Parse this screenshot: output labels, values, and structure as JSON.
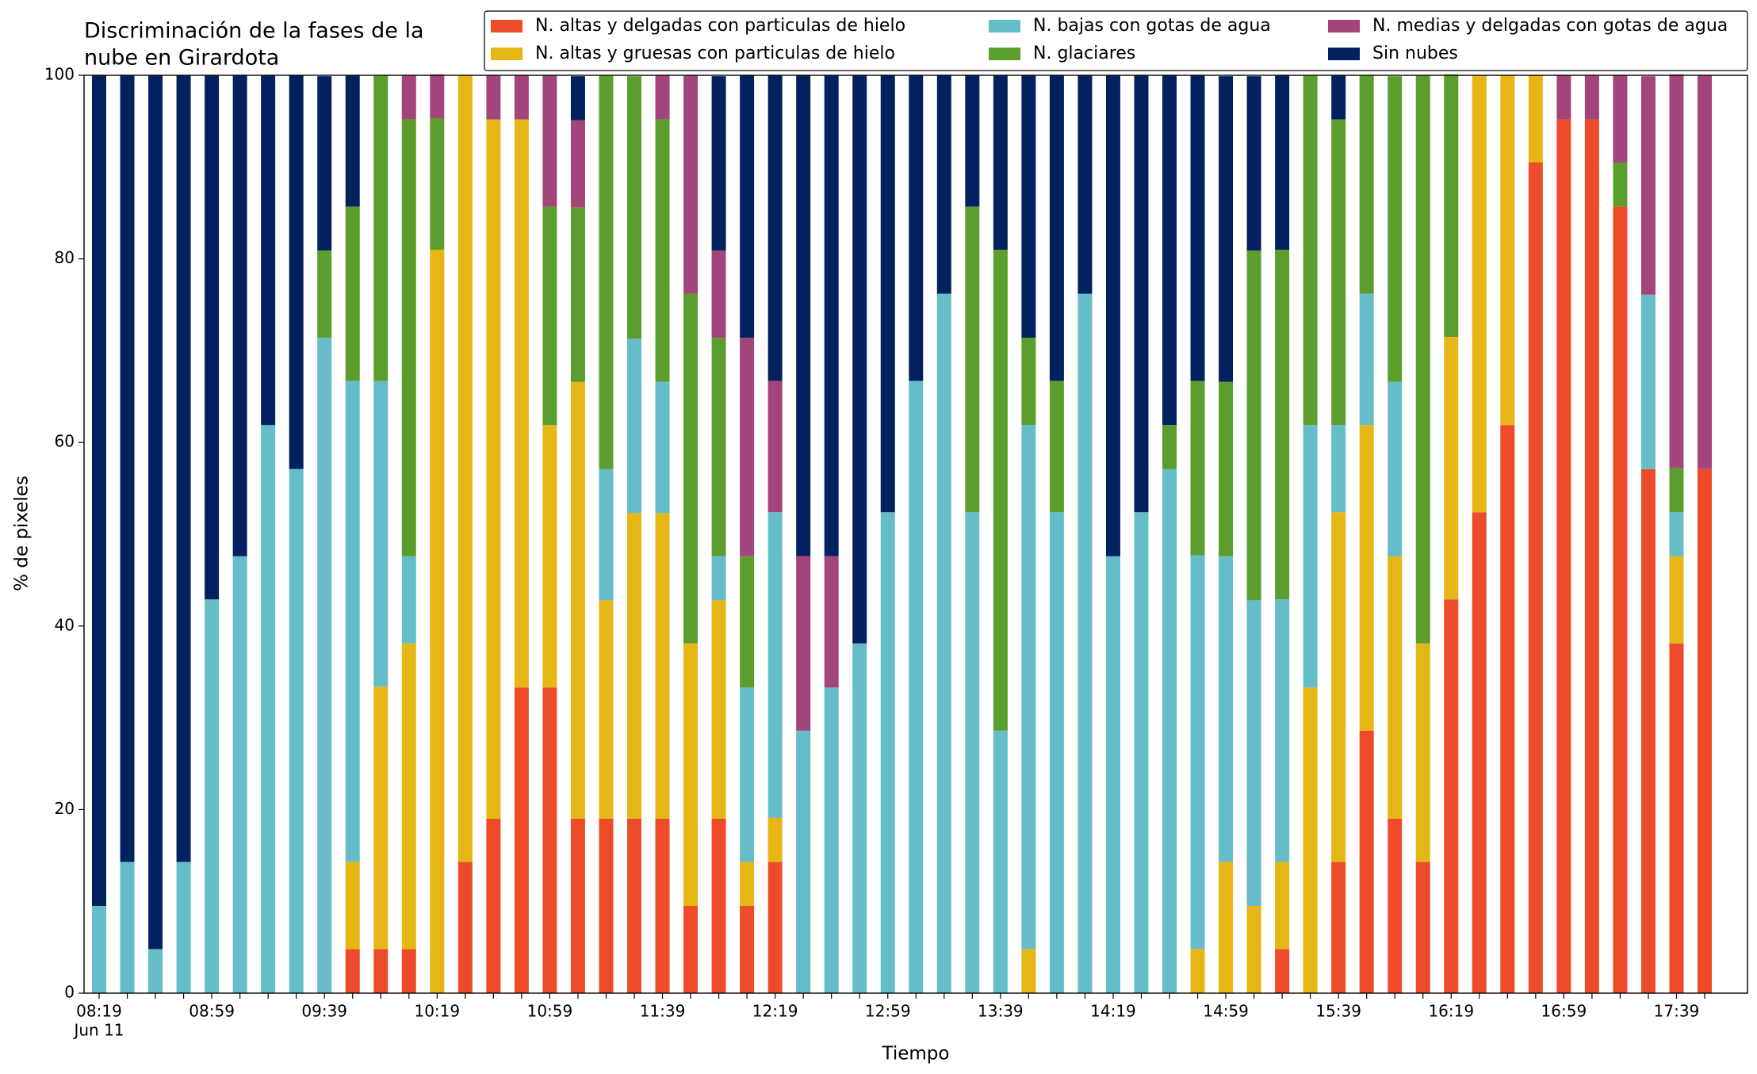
{
  "chart_data": {
    "type": "stacked_bar",
    "title": [
      "Discriminación de la fases de la",
      "nube en Girardota"
    ],
    "xlabel": "Tiempo",
    "ylabel": "% de pixeles",
    "date_label": "Jun 11",
    "categories": [
      "08:19",
      null,
      null,
      null,
      "08:59",
      null,
      null,
      null,
      "09:39",
      null,
      null,
      null,
      "10:19",
      null,
      null,
      null,
      "10:59",
      null,
      null,
      null,
      "11:39",
      null,
      null,
      null,
      "12:19",
      null,
      null,
      null,
      "12:59",
      null,
      null,
      null,
      "13:39",
      null,
      null,
      null,
      "14:19",
      null,
      null,
      null,
      "14:59",
      null,
      null,
      null,
      "15:39",
      null,
      null,
      null,
      "16:19",
      null,
      null,
      null,
      "16:59",
      null,
      null,
      null,
      "17:39",
      null
    ],
    "ylim": [
      0,
      100
    ],
    "yticks": [
      0,
      20,
      40,
      60,
      80,
      100
    ],
    "grid": false,
    "series": [
      {
        "name": "N. altas y delgadas con particulas de hielo",
        "color": "#ee4b2b",
        "values": [
          0,
          0,
          0,
          0,
          0,
          0,
          0,
          0,
          0,
          4.8,
          4.8,
          4.8,
          0,
          14.3,
          19.0,
          33.3,
          33.3,
          19.0,
          19.0,
          19.0,
          19.0,
          9.5,
          19.0,
          9.5,
          14.3,
          0,
          0,
          0,
          0,
          0,
          0,
          0,
          0,
          0,
          0,
          0,
          0,
          0,
          0,
          0,
          0,
          0,
          4.8,
          0,
          14.3,
          28.6,
          19.0,
          14.3,
          42.9,
          52.4,
          61.9,
          90.5,
          95.2,
          95.2,
          85.7,
          57.1,
          38.1,
          57.1
        ]
      },
      {
        "name": "N. altas y gruesas con particulas de hielo",
        "color": "#e5b616",
        "values": [
          0,
          0,
          0,
          0,
          0,
          0,
          0,
          0,
          0,
          9.5,
          28.6,
          33.3,
          81.0,
          85.7,
          76.2,
          61.9,
          28.6,
          47.6,
          23.8,
          33.3,
          33.3,
          28.6,
          23.8,
          4.8,
          4.8,
          0,
          0,
          0,
          0,
          0,
          0,
          0,
          0,
          4.8,
          0,
          0,
          0,
          0,
          0,
          4.8,
          14.3,
          9.5,
          9.5,
          33.3,
          38.1,
          33.3,
          28.6,
          23.8,
          28.6,
          47.6,
          38.1,
          9.5,
          0,
          0,
          0,
          0,
          9.5,
          0
        ]
      },
      {
        "name": "N. bajas con gotas de agua",
        "color": "#64bdc8",
        "values": [
          9.5,
          14.3,
          4.8,
          14.3,
          42.9,
          47.6,
          61.9,
          57.1,
          71.4,
          52.4,
          33.3,
          9.5,
          0,
          0,
          0,
          0,
          0,
          0,
          14.3,
          19.0,
          14.3,
          0,
          4.8,
          19.0,
          33.3,
          28.6,
          33.3,
          38.1,
          52.4,
          66.7,
          76.2,
          52.4,
          28.6,
          57.1,
          52.4,
          76.2,
          47.6,
          52.4,
          57.1,
          42.9,
          33.3,
          33.3,
          28.6,
          28.6,
          9.5,
          14.3,
          19.0,
          0,
          0,
          0,
          0,
          0,
          0,
          0,
          0,
          19.0,
          4.8,
          0
        ]
      },
      {
        "name": "N. glaciares",
        "color": "#5c9e2d",
        "values": [
          0,
          0,
          0,
          0,
          0,
          0,
          0,
          0,
          9.5,
          19.0,
          33.3,
          47.6,
          14.3,
          0,
          0,
          0,
          23.8,
          19.0,
          42.9,
          28.6,
          28.6,
          38.1,
          23.8,
          14.3,
          0,
          0,
          0,
          0,
          0,
          0,
          0,
          33.3,
          52.4,
          9.5,
          14.3,
          0,
          0,
          0,
          4.8,
          19.0,
          19.0,
          38.1,
          38.1,
          38.1,
          33.3,
          23.8,
          33.3,
          61.9,
          28.6,
          0,
          0,
          0,
          0,
          0,
          4.8,
          0,
          4.8,
          0
        ]
      },
      {
        "name": "N. medias y delgadas con gotas de agua",
        "color": "#a3457a",
        "values": [
          0,
          0,
          0,
          0,
          0,
          0,
          0,
          0,
          0,
          0,
          0,
          4.8,
          4.8,
          0,
          4.8,
          4.8,
          14.3,
          9.5,
          0,
          0,
          4.8,
          23.8,
          9.5,
          23.8,
          14.3,
          19.0,
          14.3,
          0,
          0,
          0,
          0,
          0,
          0,
          0,
          0,
          0,
          0,
          0,
          0,
          0,
          0,
          0,
          0,
          0,
          0,
          0,
          0,
          0,
          0,
          0,
          0,
          0,
          4.8,
          4.8,
          9.5,
          23.8,
          42.9,
          42.9
        ]
      },
      {
        "name": "Sin nubes",
        "color": "#03215f",
        "values": [
          90.5,
          85.7,
          95.2,
          85.7,
          57.1,
          52.4,
          38.1,
          42.9,
          19.0,
          14.3,
          0,
          0,
          0,
          0,
          0,
          0,
          0,
          4.8,
          0,
          0,
          0,
          0,
          19.0,
          28.6,
          33.3,
          52.4,
          52.4,
          61.9,
          47.6,
          33.3,
          23.8,
          14.3,
          19.0,
          28.6,
          33.3,
          23.8,
          52.4,
          47.6,
          38.1,
          33.3,
          33.3,
          19.0,
          19.0,
          0,
          4.8,
          0,
          0,
          0,
          0,
          0,
          0,
          0,
          0,
          0,
          0,
          0,
          0,
          0
        ]
      }
    ]
  }
}
